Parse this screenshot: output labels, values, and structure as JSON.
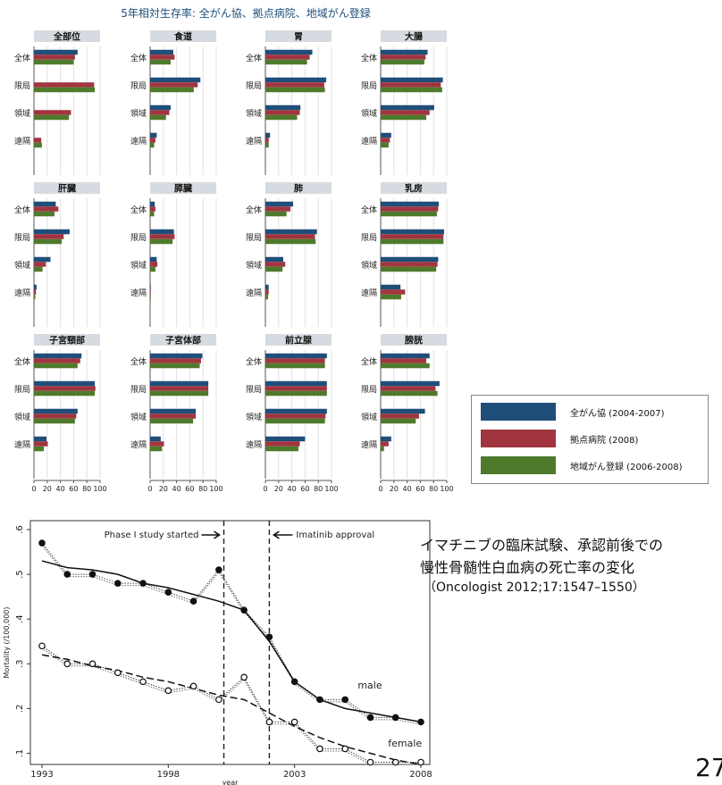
{
  "slide": {
    "title": "5年相対生存率:  全がん協、拠点病院、地域がん登録",
    "caption_line1": "イマチニブの臨床試験、承認前後での",
    "caption_line2": "慢性骨髄性白血病の死亡率の変化",
    "citation": "（Oncologist 2012;17:1547–1550）",
    "page_number": "27"
  },
  "chart_data": [
    {
      "type": "bar",
      "orientation": "horizontal",
      "title": "5年相対生存率:  全がん協、拠点病院、地域がん登録",
      "categories": [
        "全体",
        "限局",
        "領域",
        "遠隔"
      ],
      "x_ticks": [
        "0",
        "20",
        "40",
        "60",
        "80",
        "100"
      ],
      "xlim": [
        0,
        100
      ],
      "series_names": [
        "全がん協 (2004-2007)",
        "拠点病院 (2008)",
        "地域がん登録 (2006-2008)"
      ],
      "series_colors": [
        "#1f4e79",
        "#a0353f",
        "#4e7a2c"
      ],
      "legend": "right",
      "panels": [
        {
          "name": "全部位",
          "values": [
            [
              66,
              62,
              60
            ],
            [
              0,
              91,
              92
            ],
            [
              0,
              56,
              53
            ],
            [
              0,
              11,
              12
            ]
          ]
        },
        {
          "name": "食道",
          "values": [
            [
              35,
              37,
              31
            ],
            [
              76,
              72,
              66
            ],
            [
              31,
              29,
              24
            ],
            [
              10,
              8,
              6
            ]
          ]
        },
        {
          "name": "胃",
          "values": [
            [
              71,
              67,
              63
            ],
            [
              92,
              89,
              90
            ],
            [
              53,
              52,
              48
            ],
            [
              7,
              5,
              5
            ]
          ]
        },
        {
          "name": "大腸",
          "values": [
            [
              71,
              68,
              66
            ],
            [
              94,
              91,
              93
            ],
            [
              81,
              74,
              69
            ],
            [
              16,
              14,
              12
            ]
          ]
        },
        {
          "name": "肝臓",
          "values": [
            [
              33,
              37,
              31
            ],
            [
              54,
              45,
              42
            ],
            [
              25,
              18,
              13
            ],
            [
              4,
              3,
              2
            ]
          ]
        },
        {
          "name": "膵臓",
          "values": [
            [
              7,
              8,
              6
            ],
            [
              36,
              37,
              34
            ],
            [
              10,
              11,
              8
            ],
            [
              1,
              1,
              1
            ]
          ]
        },
        {
          "name": "肺",
          "values": [
            [
              42,
              38,
              32
            ],
            [
              78,
              75,
              76
            ],
            [
              27,
              30,
              26
            ],
            [
              5,
              5,
              4
            ]
          ]
        },
        {
          "name": "乳房",
          "values": [
            [
              88,
              87,
              85
            ],
            [
              96,
              95,
              95
            ],
            [
              87,
              86,
              84
            ],
            [
              30,
              37,
              31
            ]
          ]
        },
        {
          "name": "子宮頸部",
          "values": [
            [
              72,
              70,
              66
            ],
            [
              92,
              93,
              92
            ],
            [
              66,
              64,
              62
            ],
            [
              19,
              21,
              15
            ]
          ]
        },
        {
          "name": "子宮体部",
          "values": [
            [
              79,
              77,
              75
            ],
            [
              88,
              88,
              88
            ],
            [
              69,
              69,
              65
            ],
            [
              16,
              21,
              18
            ]
          ]
        },
        {
          "name": "前立腺",
          "values": [
            [
              93,
              90,
              90
            ],
            [
              93,
              93,
              93
            ],
            [
              93,
              91,
              90
            ],
            [
              60,
              52,
              50
            ]
          ]
        },
        {
          "name": "膀胱",
          "values": [
            [
              74,
              69,
              74
            ],
            [
              89,
              83,
              86
            ],
            [
              67,
              58,
              53
            ],
            [
              16,
              12,
              5
            ]
          ]
        }
      ]
    },
    {
      "type": "line",
      "xlabel": "year",
      "ylabel": "Mortality (/100,000)",
      "xlim": [
        1993,
        2008
      ],
      "ylim": [
        0.1,
        0.6
      ],
      "x_ticks": [
        1993,
        1998,
        2003,
        2008
      ],
      "y_ticks": [
        ".1",
        ".2",
        ".3",
        ".4",
        ".5",
        ".6"
      ],
      "y_tick_values": [
        0.1,
        0.2,
        0.3,
        0.4,
        0.5,
        0.6
      ],
      "annotations": {
        "phase1": "Phase I study started",
        "phase1_year": 2000.2,
        "approval": "Imatinib approval",
        "approval_year": 2002.0,
        "male": "male",
        "female": "female"
      },
      "series": [
        {
          "name": "male",
          "x": [
            1993,
            1994,
            1995,
            1996,
            1997,
            1998,
            1999,
            2000,
            2001,
            2002,
            2003,
            2004,
            2005,
            2006,
            2007,
            2008
          ],
          "y": [
            0.57,
            0.5,
            0.5,
            0.48,
            0.48,
            0.46,
            0.44,
            0.51,
            0.42,
            0.36,
            0.26,
            0.22,
            0.22,
            0.18,
            0.18,
            0.17
          ],
          "trend": [
            0.53,
            0.515,
            0.51,
            0.5,
            0.48,
            0.47,
            0.455,
            0.44,
            0.42,
            0.35,
            0.26,
            0.22,
            0.2,
            0.19,
            0.18,
            0.17
          ]
        },
        {
          "name": "female",
          "x": [
            1993,
            1994,
            1995,
            1996,
            1997,
            1998,
            1999,
            2000,
            2001,
            2002,
            2003,
            2004,
            2005,
            2006,
            2007,
            2008
          ],
          "y": [
            0.34,
            0.3,
            0.3,
            0.28,
            0.26,
            0.24,
            0.25,
            0.22,
            0.27,
            0.17,
            0.17,
            0.11,
            0.11,
            0.08,
            0.08,
            0.08
          ],
          "trend": [
            0.32,
            0.31,
            0.295,
            0.285,
            0.27,
            0.26,
            0.245,
            0.23,
            0.22,
            0.19,
            0.16,
            0.135,
            0.115,
            0.1,
            0.085,
            0.075
          ]
        }
      ]
    }
  ]
}
